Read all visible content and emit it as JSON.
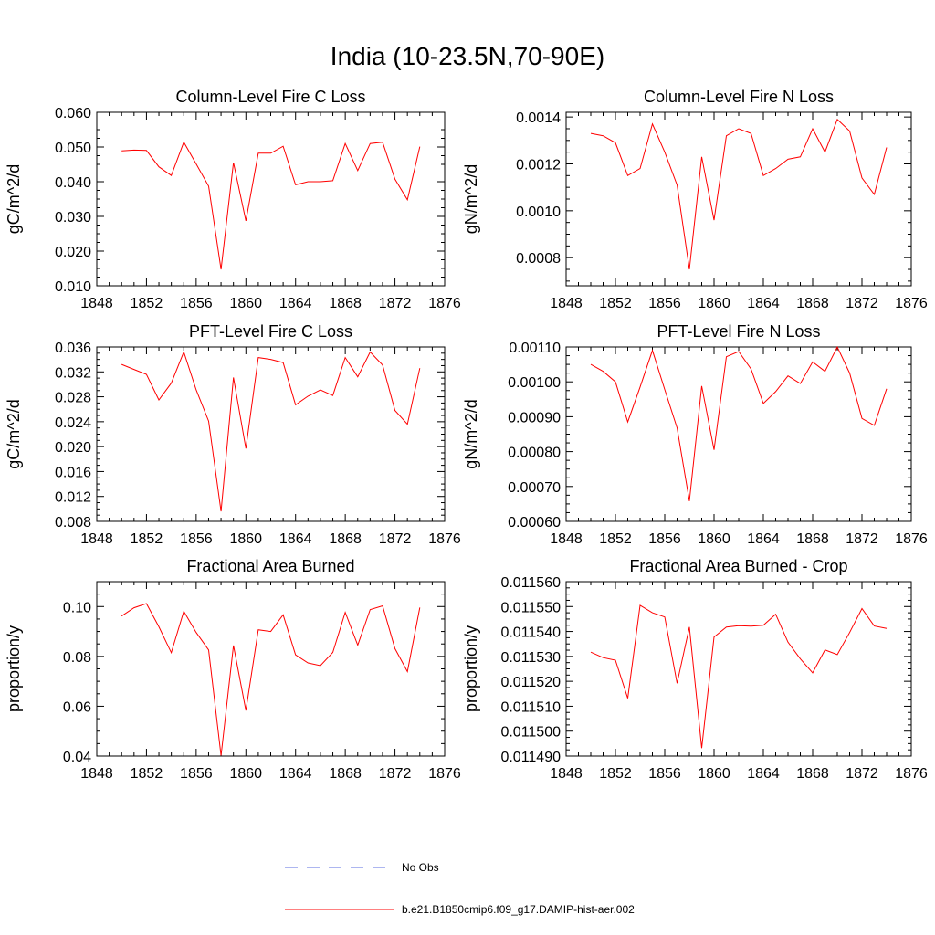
{
  "title": "India (10-23.5N,70-90E)",
  "legend": {
    "entries": [
      {
        "label": "No Obs",
        "color": "#5b6ee0",
        "style": "dashed"
      },
      {
        "label": "b.e21.B1850cmip6.f09_g17.DAMIP-hist-aer.002",
        "color": "#ff0000",
        "style": "solid"
      }
    ]
  },
  "chart_data": [
    {
      "type": "line",
      "title": "Column-Level Fire C Loss",
      "ylabel": "gC/m^2/d",
      "xlim": [
        1848,
        1876
      ],
      "xticks": [
        "1848",
        "1852",
        "1856",
        "1860",
        "1864",
        "1868",
        "1872",
        "1876"
      ],
      "ylim": [
        0.01,
        0.06
      ],
      "yticks": [
        "0.010",
        "0.020",
        "0.030",
        "0.040",
        "0.050",
        "0.060"
      ],
      "x": [
        1850,
        1851,
        1852,
        1853,
        1854,
        1855,
        1856,
        1857,
        1858,
        1859,
        1860,
        1861,
        1862,
        1863,
        1864,
        1865,
        1866,
        1867,
        1868,
        1869,
        1870,
        1871,
        1872,
        1873,
        1874
      ],
      "series": [
        {
          "color": "#ff0000",
          "values": [
            0.0489,
            0.0491,
            0.049,
            0.0443,
            0.0418,
            0.0514,
            0.0451,
            0.0387,
            0.0147,
            0.0455,
            0.0287,
            0.0482,
            0.0482,
            0.0502,
            0.0391,
            0.04,
            0.04,
            0.0403,
            0.051,
            0.0432,
            0.051,
            0.0514,
            0.0407,
            0.0348,
            0.0501
          ]
        }
      ]
    },
    {
      "type": "line",
      "title": "Column-Level Fire N Loss",
      "ylabel": "gN/m^2/d",
      "xlim": [
        1848,
        1876
      ],
      "xticks": [
        "1848",
        "1852",
        "1856",
        "1860",
        "1864",
        "1868",
        "1872",
        "1876"
      ],
      "ylim": [
        0.00068,
        0.00142
      ],
      "yticks": [
        "0.0008",
        "0.0010",
        "0.0012",
        "0.0014"
      ],
      "ytick_values": [
        0.0008,
        0.001,
        0.0012,
        0.0014
      ],
      "x": [
        1850,
        1851,
        1852,
        1853,
        1854,
        1855,
        1856,
        1857,
        1858,
        1859,
        1860,
        1861,
        1862,
        1863,
        1864,
        1865,
        1866,
        1867,
        1868,
        1869,
        1870,
        1871,
        1872,
        1873,
        1874
      ],
      "series": [
        {
          "color": "#ff0000",
          "values": [
            0.00133,
            0.00132,
            0.00129,
            0.00115,
            0.00118,
            0.00137,
            0.00125,
            0.00111,
            0.00075,
            0.00123,
            0.00096,
            0.00132,
            0.00135,
            0.00133,
            0.00115,
            0.00118,
            0.00122,
            0.00123,
            0.00135,
            0.00125,
            0.00139,
            0.00134,
            0.00114,
            0.00107,
            0.00127
          ]
        }
      ]
    },
    {
      "type": "line",
      "title": "PFT-Level Fire C Loss",
      "ylabel": "gC/m^2/d",
      "xlim": [
        1848,
        1876
      ],
      "xticks": [
        "1848",
        "1852",
        "1856",
        "1860",
        "1864",
        "1868",
        "1872",
        "1876"
      ],
      "ylim": [
        0.008,
        0.036
      ],
      "yticks": [
        "0.008",
        "0.012",
        "0.016",
        "0.020",
        "0.024",
        "0.028",
        "0.032",
        "0.036"
      ],
      "x": [
        1850,
        1851,
        1852,
        1853,
        1854,
        1855,
        1856,
        1857,
        1858,
        1859,
        1860,
        1861,
        1862,
        1863,
        1864,
        1865,
        1866,
        1867,
        1868,
        1869,
        1870,
        1871,
        1872,
        1873,
        1874
      ],
      "series": [
        {
          "color": "#ff0000",
          "values": [
            0.0332,
            0.0324,
            0.0316,
            0.0275,
            0.0302,
            0.0352,
            0.0291,
            0.0241,
            0.0096,
            0.0311,
            0.0197,
            0.0343,
            0.034,
            0.0335,
            0.0267,
            0.0281,
            0.0291,
            0.0282,
            0.0343,
            0.0312,
            0.0352,
            0.0331,
            0.0258,
            0.0236,
            0.0326
          ]
        }
      ]
    },
    {
      "type": "line",
      "title": "PFT-Level Fire N Loss",
      "ylabel": "gN/m^2/d",
      "xlim": [
        1848,
        1876
      ],
      "xticks": [
        "1848",
        "1852",
        "1856",
        "1860",
        "1864",
        "1868",
        "1872",
        "1876"
      ],
      "ylim": [
        0.0006,
        0.0011
      ],
      "yticks": [
        "0.00060",
        "0.00070",
        "0.00080",
        "0.00090",
        "0.00100",
        "0.00110"
      ],
      "x": [
        1850,
        1851,
        1852,
        1853,
        1854,
        1855,
        1856,
        1857,
        1858,
        1859,
        1860,
        1861,
        1862,
        1863,
        1864,
        1865,
        1866,
        1867,
        1868,
        1869,
        1870,
        1871,
        1872,
        1873,
        1874
      ],
      "series": [
        {
          "color": "#ff0000",
          "values": [
            0.00105,
            0.00103,
            0.001,
            0.000885,
            0.000985,
            0.00109,
            0.000978,
            0.000868,
            0.000658,
            0.000988,
            0.000805,
            0.001072,
            0.001087,
            0.001037,
            0.000938,
            0.000972,
            0.001017,
            0.000995,
            0.001057,
            0.00103,
            0.0011,
            0.001025,
            0.000895,
            0.000875,
            0.00098
          ]
        }
      ]
    },
    {
      "type": "line",
      "title": "Fractional Area Burned",
      "ylabel": "proportion/y",
      "xlim": [
        1848,
        1876
      ],
      "xticks": [
        "1848",
        "1852",
        "1856",
        "1860",
        "1864",
        "1868",
        "1872",
        "1876"
      ],
      "ylim": [
        0.04,
        0.11
      ],
      "yticks": [
        "0.04",
        "0.06",
        "0.08",
        "0.10"
      ],
      "ytick_values": [
        0.04,
        0.06,
        0.08,
        0.1
      ],
      "x": [
        1850,
        1851,
        1852,
        1853,
        1854,
        1855,
        1856,
        1857,
        1858,
        1859,
        1860,
        1861,
        1862,
        1863,
        1864,
        1865,
        1866,
        1867,
        1868,
        1869,
        1870,
        1871,
        1872,
        1873,
        1874
      ],
      "series": [
        {
          "color": "#ff0000",
          "values": [
            0.0962,
            0.0995,
            0.1012,
            0.0919,
            0.0815,
            0.0981,
            0.0896,
            0.0826,
            0.0402,
            0.0844,
            0.0583,
            0.0907,
            0.09,
            0.0967,
            0.0806,
            0.0774,
            0.0763,
            0.0816,
            0.0977,
            0.0845,
            0.0988,
            0.1003,
            0.0831,
            0.0739,
            0.0996
          ]
        }
      ]
    },
    {
      "type": "line",
      "title": "Fractional Area Burned - Crop",
      "ylabel": "proportion/y",
      "xlim": [
        1848,
        1876
      ],
      "xticks": [
        "1848",
        "1852",
        "1856",
        "1860",
        "1864",
        "1868",
        "1872",
        "1876"
      ],
      "ylim": [
        0.01149,
        0.01156
      ],
      "yticks": [
        "0.011490",
        "0.011500",
        "0.011510",
        "0.011520",
        "0.011530",
        "0.011540",
        "0.011550",
        "0.011560"
      ],
      "x": [
        1850,
        1851,
        1852,
        1853,
        1854,
        1855,
        1856,
        1857,
        1858,
        1859,
        1860,
        1861,
        1862,
        1863,
        1864,
        1865,
        1866,
        1867,
        1868,
        1869,
        1870,
        1871,
        1872,
        1873,
        1874
      ],
      "series": [
        {
          "color": "#ff0000",
          "values": [
            0.0115317,
            0.0115295,
            0.0115285,
            0.0115132,
            0.0115505,
            0.0115475,
            0.0115458,
            0.0115192,
            0.0115418,
            0.0114932,
            0.0115378,
            0.0115418,
            0.0115423,
            0.0115421,
            0.0115425,
            0.0115469,
            0.0115357,
            0.011529,
            0.0115234,
            0.0115326,
            0.0115307,
            0.0115396,
            0.0115492,
            0.0115422,
            0.0115412
          ]
        }
      ]
    }
  ]
}
